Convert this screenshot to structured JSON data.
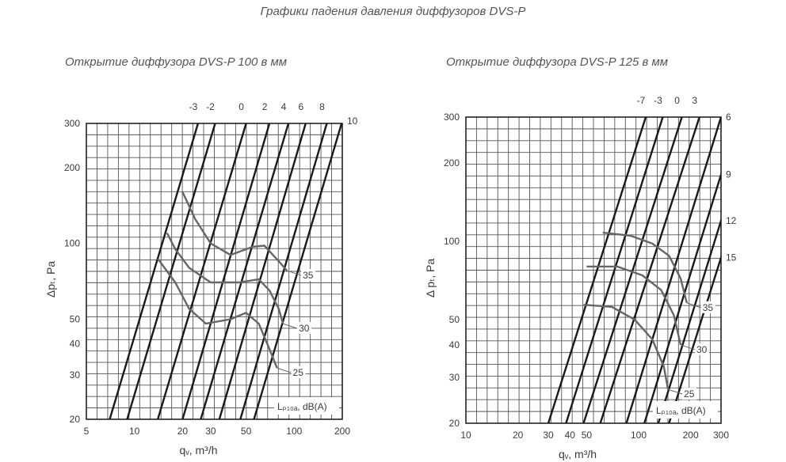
{
  "page": {
    "title": "Графики падения давления диффузоров DVS-P"
  },
  "chart_data": [
    {
      "type": "line",
      "subtitle": "Открытие диффузора DVS-P 100 в мм",
      "xlabel": "qᵥ, m³/h",
      "ylabel": "Δpₜ, Pa",
      "xscale": "log",
      "yscale": "log",
      "xlim": [
        5,
        200
      ],
      "ylim": [
        20,
        300
      ],
      "x_ticks": [
        5,
        10,
        20,
        30,
        50,
        100,
        200
      ],
      "y_ticks": [
        20,
        30,
        40,
        50,
        100,
        200,
        300
      ],
      "grid": true,
      "opening_lines": [
        {
          "label": "-3",
          "points": [
            [
              7,
              20
            ],
            [
              25,
              300
            ]
          ]
        },
        {
          "label": "-2",
          "points": [
            [
              9,
              20
            ],
            [
              32,
              300
            ]
          ]
        },
        {
          "label": "0",
          "points": [
            [
              14,
              20
            ],
            [
              50,
              300
            ]
          ]
        },
        {
          "label": "2",
          "points": [
            [
              20,
              20
            ],
            [
              70,
              300
            ]
          ]
        },
        {
          "label": "4",
          "points": [
            [
              26,
              20
            ],
            [
              92,
              300
            ]
          ]
        },
        {
          "label": "6",
          "points": [
            [
              34,
              20
            ],
            [
              118,
              300
            ]
          ]
        },
        {
          "label": "8",
          "points": [
            [
              46,
              20
            ],
            [
              160,
              300
            ]
          ]
        },
        {
          "label": "10",
          "points": [
            [
              56,
              20
            ],
            [
              198,
              300
            ]
          ]
        }
      ],
      "noise_curves": [
        {
          "label": "35",
          "points": [
            [
              20,
              160
            ],
            [
              24,
              125
            ],
            [
              30,
              100
            ],
            [
              40,
              90
            ],
            [
              55,
              97
            ],
            [
              65,
              98
            ],
            [
              80,
              85
            ],
            [
              90,
              78
            ]
          ]
        },
        {
          "label": "30",
          "points": [
            [
              16,
              110
            ],
            [
              18,
              95
            ],
            [
              22,
              80
            ],
            [
              30,
              70
            ],
            [
              45,
              70
            ],
            [
              60,
              72
            ],
            [
              70,
              65
            ],
            [
              80,
              55
            ],
            [
              85,
              48
            ]
          ]
        },
        {
          "label": "25",
          "points": [
            [
              14,
              87
            ],
            [
              18,
              70
            ],
            [
              22,
              55
            ],
            [
              28,
              48
            ],
            [
              40,
              50
            ],
            [
              50,
              53
            ],
            [
              60,
              48
            ],
            [
              70,
              38
            ],
            [
              78,
              32
            ]
          ]
        }
      ],
      "noise_label": "Lₚ₁₀ₐ, dB(A)"
    },
    {
      "type": "line",
      "subtitle": "Открытие диффузора DVS-P 125 в мм",
      "xlabel": "qᵥ, m³/h",
      "ylabel": "Δ pₜ, Pa",
      "xscale": "log",
      "yscale": "log",
      "xlim": [
        10,
        300
      ],
      "ylim": [
        20,
        300
      ],
      "x_ticks": [
        10,
        20,
        30,
        40,
        50,
        100,
        200,
        300
      ],
      "y_ticks": [
        20,
        30,
        40,
        50,
        100,
        200,
        300
      ],
      "grid": true,
      "opening_lines": [
        {
          "label": "-7",
          "points": [
            [
              30,
              20
            ],
            [
              110,
              300
            ]
          ]
        },
        {
          "label": "-3",
          "points": [
            [
              38,
              20
            ],
            [
              138,
              300
            ]
          ]
        },
        {
          "label": "0",
          "points": [
            [
              48,
              20
            ],
            [
              178,
              300
            ]
          ]
        },
        {
          "label": "3",
          "points": [
            [
              60,
              20
            ],
            [
              225,
              300
            ]
          ]
        },
        {
          "label": "6",
          "points": [
            [
              85,
              20
            ],
            [
              300,
              300
            ]
          ]
        },
        {
          "label": "9",
          "points": [
            [
              108,
              20
            ],
            [
              380,
              300
            ]
          ]
        },
        {
          "label": "12",
          "points": [
            [
              130,
              20
            ],
            [
              460,
              300
            ]
          ]
        },
        {
          "label": "15",
          "points": [
            [
              150,
              20
            ],
            [
              540,
              300
            ]
          ]
        }
      ],
      "noise_curves": [
        {
          "label": "35",
          "points": [
            [
              62,
              108
            ],
            [
              90,
              105
            ],
            [
              120,
              98
            ],
            [
              150,
              88
            ],
            [
              175,
              72
            ],
            [
              190,
              58
            ]
          ]
        },
        {
          "label": "30",
          "points": [
            [
              50,
              80
            ],
            [
              75,
              80
            ],
            [
              105,
              74
            ],
            [
              135,
              65
            ],
            [
              160,
              52
            ],
            [
              175,
              40
            ]
          ]
        },
        {
          "label": "25",
          "points": [
            [
              48,
              57
            ],
            [
              70,
              56
            ],
            [
              95,
              50
            ],
            [
              120,
              42
            ],
            [
              140,
              33
            ],
            [
              148,
              27
            ]
          ]
        }
      ],
      "noise_label": "Lₚ₁₀ₐ, dB(A)"
    }
  ]
}
